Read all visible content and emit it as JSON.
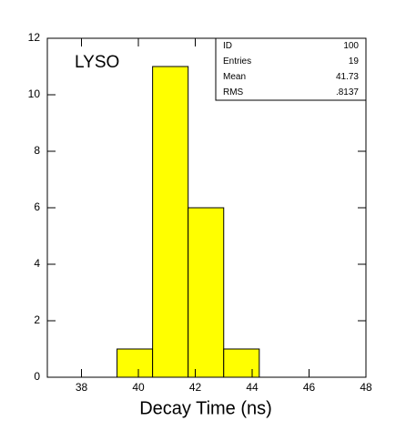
{
  "chart_data": {
    "type": "histogram",
    "annotation": "LYSO",
    "x_label": "Decay Time (ns)",
    "bins": [
      39.25,
      40.5,
      41.75,
      43.0,
      44.25
    ],
    "values": [
      1,
      11,
      6,
      1
    ],
    "color": "#ffff00",
    "xlim": [
      36.8,
      48
    ],
    "xticks": [
      38,
      40,
      42,
      44,
      46,
      48
    ],
    "ylim": [
      0,
      12
    ],
    "yticks": [
      0,
      2,
      4,
      6,
      8,
      10,
      12
    ],
    "stats": [
      {
        "label": "ID",
        "value": "100"
      },
      {
        "label": "Entries",
        "value": "19"
      },
      {
        "label": "Mean",
        "value": "41.73"
      },
      {
        "label": "RMS",
        "value": ".8137"
      }
    ]
  }
}
